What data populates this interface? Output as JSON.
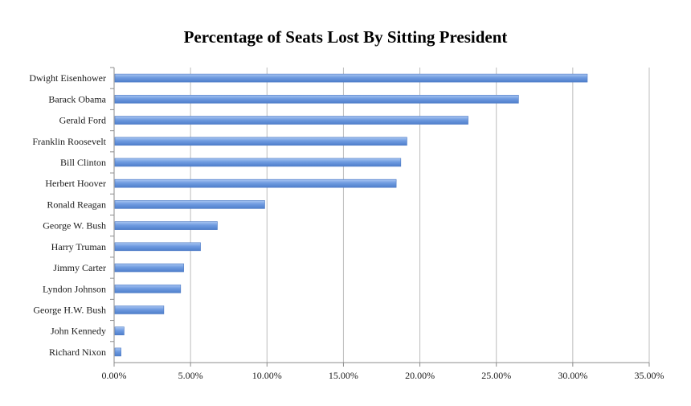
{
  "chart_data": {
    "type": "bar",
    "orientation": "horizontal",
    "title": "Percentage of Seats Lost By Sitting President",
    "xlabel": "",
    "ylabel": "",
    "categories": [
      "Dwight Eisenhower",
      "Barack Obama",
      "Gerald Ford",
      "Franklin Roosevelt",
      "Bill Clinton",
      "Herbert Hoover",
      "Ronald Reagan",
      "George W. Bush",
      "Harry Truman",
      "Jimmy Carter",
      "Lyndon Johnson",
      "George H.W. Bush",
      "John Kennedy",
      "Richard Nixon"
    ],
    "values": [
      30.9,
      26.4,
      23.1,
      19.1,
      18.7,
      18.4,
      9.8,
      6.7,
      5.6,
      4.5,
      4.3,
      3.2,
      0.6,
      0.4
    ],
    "xlim": [
      0,
      35
    ],
    "x_ticks": [
      "0.00%",
      "5.00%",
      "10.00%",
      "15.00%",
      "20.00%",
      "25.00%",
      "30.00%",
      "35.00%"
    ],
    "grid": true,
    "legend": "none",
    "bar_color": "#6f9be0"
  }
}
